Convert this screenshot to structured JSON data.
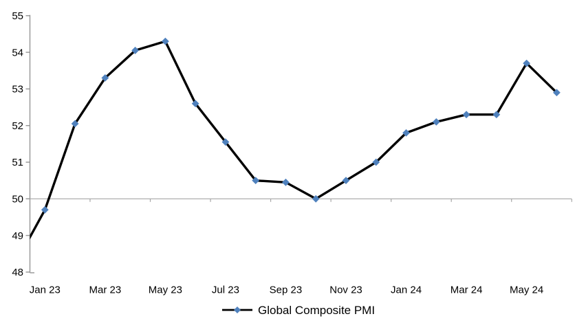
{
  "chart_data": {
    "type": "line",
    "title": "",
    "series_name": "Global Composite PMI",
    "categories": [
      "Jan 23",
      "Feb 23",
      "Mar 23",
      "Apr 23",
      "May 23",
      "Jun 23",
      "Jul 23",
      "Aug 23",
      "Sep 23",
      "Oct 23",
      "Nov 23",
      "Dec 23",
      "Jan 24",
      "Feb 24",
      "Mar 24",
      "Apr 24",
      "May 24",
      "Jun 24"
    ],
    "values": [
      49.7,
      52.05,
      53.3,
      54.05,
      54.3,
      52.6,
      51.55,
      50.5,
      50.45,
      50.0,
      50.5,
      51.0,
      51.8,
      52.1,
      52.3,
      52.3,
      53.7,
      52.9
    ],
    "lead_in_value": 48.2,
    "ylim": [
      48,
      55
    ],
    "ytick_labels": [
      "48",
      "49",
      "50",
      "51",
      "52",
      "53",
      "54",
      "55"
    ],
    "xtick_labels": [
      "Jan 23",
      "Mar 23",
      "May 23",
      "Jul 23",
      "Sep 23",
      "Nov 23",
      "Jan 24",
      "Mar 24",
      "May 24"
    ],
    "reference_line_value": 50,
    "grid": "single horizontal category-axis line at 50 with tick marks",
    "legend_position": "bottom-center",
    "marker_shape": "diamond",
    "colors": {
      "line": "#000000",
      "marker": "#4F81BD",
      "axis": "#949494",
      "gridline": "#A6A6A6",
      "text": "#000000",
      "background": "#FFFFFF"
    }
  }
}
